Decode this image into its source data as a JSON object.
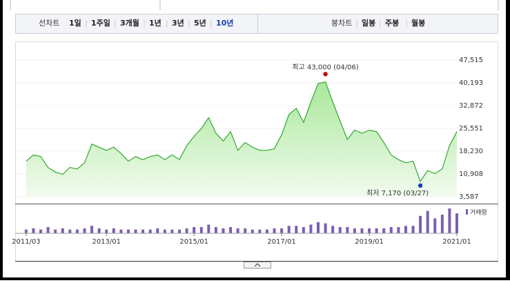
{
  "toolbar": {
    "line_label": "선차트",
    "periods": [
      "1일",
      "1주일",
      "3개월",
      "1년",
      "3년",
      "5년",
      "10년"
    ],
    "selected_period": 6,
    "candle_label": "봉차트",
    "candles": [
      "일봉",
      "주봉",
      "월봉"
    ]
  },
  "chart_data": {
    "type": "line",
    "x": [
      "2011/03",
      "2011/05",
      "2011/07",
      "2011/09",
      "2011/11",
      "2012/01",
      "2012/03",
      "2012/05",
      "2012/07",
      "2012/09",
      "2012/11",
      "2013/01",
      "2013/03",
      "2013/05",
      "2013/07",
      "2013/09",
      "2013/11",
      "2014/01",
      "2014/03",
      "2014/05",
      "2014/07",
      "2014/09",
      "2014/11",
      "2015/01",
      "2015/03",
      "2015/05",
      "2015/07",
      "2015/09",
      "2015/11",
      "2016/01",
      "2016/03",
      "2016/05",
      "2016/07",
      "2016/09",
      "2016/11",
      "2017/01",
      "2017/03",
      "2017/05",
      "2017/07",
      "2017/09",
      "2017/11",
      "2018/01",
      "2018/03",
      "2018/05",
      "2018/07",
      "2018/09",
      "2018/11",
      "2019/01",
      "2019/03",
      "2019/05",
      "2019/07",
      "2019/09",
      "2019/11",
      "2020/01",
      "2020/03",
      "2020/05",
      "2020/07",
      "2020/09",
      "2020/11",
      "2021/01"
    ],
    "series": [
      {
        "color": "#2fa82f",
        "values": [
          15000,
          17000,
          16500,
          13000,
          11500,
          10800,
          13000,
          12500,
          14500,
          20500,
          19500,
          18500,
          19500,
          17500,
          15000,
          16500,
          15500,
          16500,
          17000,
          15500,
          17000,
          15500,
          20000,
          23000,
          25500,
          29000,
          24000,
          21500,
          24500,
          18500,
          21000,
          19500,
          18500,
          18500,
          19000,
          23500,
          30000,
          32000,
          27500,
          34000,
          40000,
          40500,
          34000,
          28000,
          22000,
          25000,
          24000,
          25000,
          24500,
          21000,
          17000,
          15500,
          14500,
          15000,
          8500,
          12000,
          11000,
          12500,
          20000,
          24500
        ]
      }
    ],
    "volume": {
      "name": "거래량",
      "color": "#7a5fb0",
      "values": [
        3,
        4,
        3,
        5,
        3,
        4,
        3,
        3,
        4,
        6,
        4,
        3,
        4,
        3,
        3,
        3,
        3,
        3,
        4,
        3,
        3,
        3,
        4,
        5,
        5,
        7,
        5,
        4,
        5,
        4,
        4,
        3,
        3,
        3,
        4,
        4,
        6,
        6,
        5,
        7,
        9,
        8,
        6,
        5,
        5,
        4,
        4,
        4,
        4,
        4,
        5,
        5,
        6,
        6,
        14,
        18,
        12,
        15,
        20,
        16
      ]
    },
    "xlim": [
      "2010/12",
      "2021/01"
    ],
    "xticks": [
      "2011/03",
      "2013/01",
      "2015/01",
      "2017/01",
      "2019/01",
      "2021/01"
    ],
    "ylim": [
      3587,
      47515
    ],
    "yticks": [
      {
        "value": 3587,
        "label": "3,587"
      },
      {
        "value": 10908,
        "label": "10,908"
      },
      {
        "value": 18230,
        "label": "18,230"
      },
      {
        "value": 25551,
        "label": "25,551"
      },
      {
        "value": 32872,
        "label": "32,872"
      },
      {
        "value": 40193,
        "label": "40,193"
      },
      {
        "value": 47515,
        "label": "47,515"
      }
    ],
    "annotations": [
      {
        "value": 43000,
        "text": "최고 43,000 (04/06)",
        "color": "#cc0000"
      },
      {
        "value": 7170,
        "text": "최저 7,170 (03/27)",
        "color": "#1a3fb0"
      }
    ]
  }
}
